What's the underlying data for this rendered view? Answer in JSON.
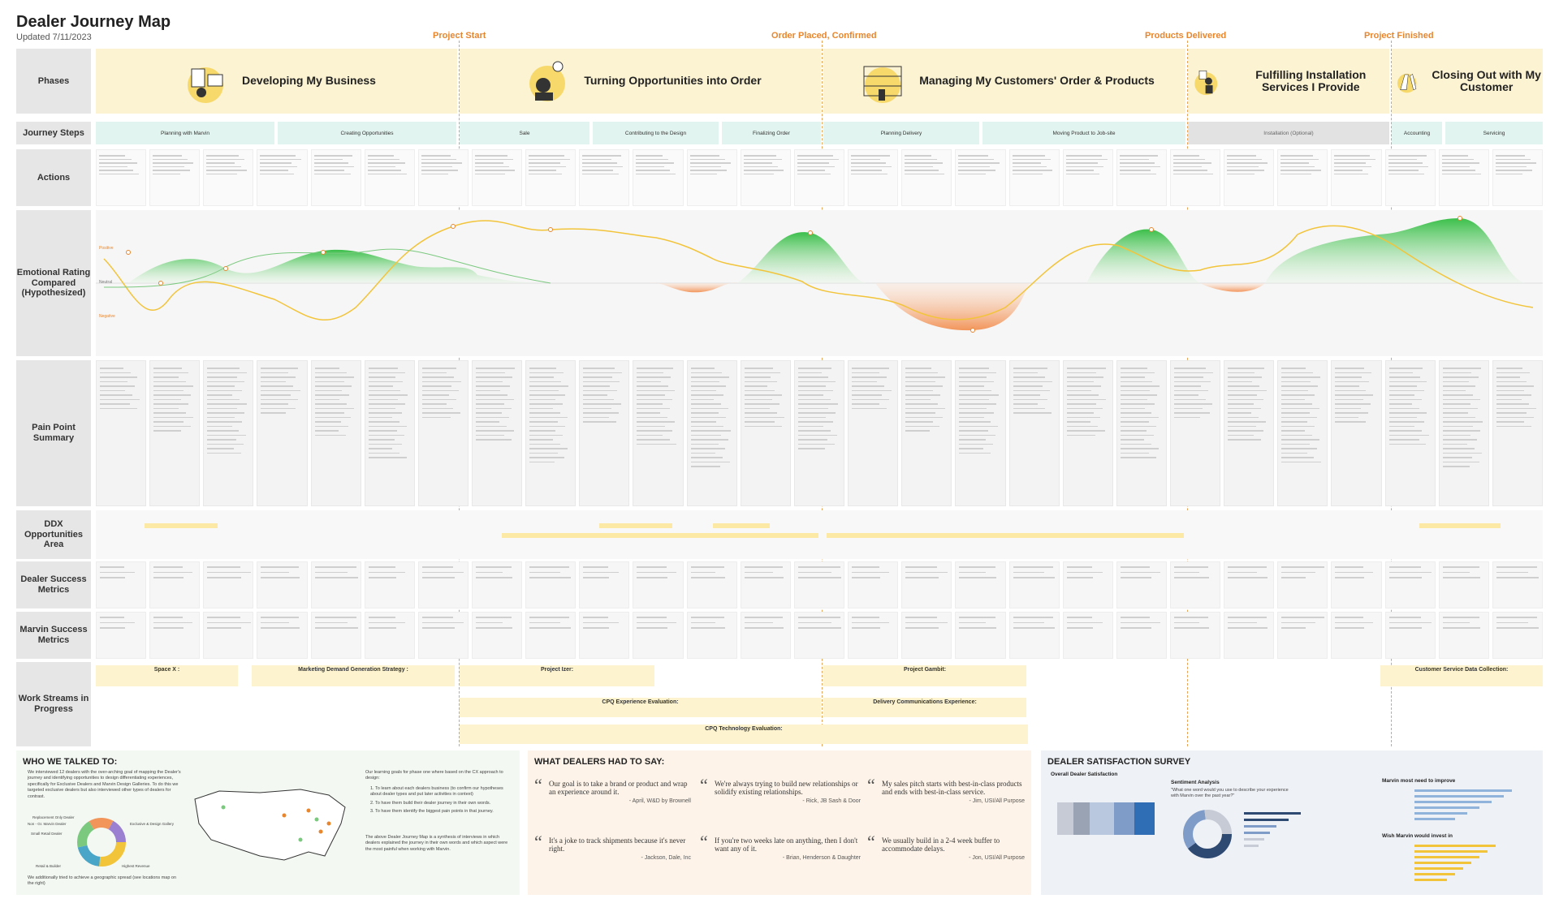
{
  "header": {
    "title": "Dealer Journey Map",
    "updated": "Updated 7/11/2023"
  },
  "milestones": [
    "Project Start",
    "Order Placed, Confirmed",
    "Products Delivered",
    "Project Finished"
  ],
  "row_labels": {
    "phases": "Phases",
    "journey_steps": "Journey Steps",
    "actions": "Actions",
    "emotional": "Emotional Rating Compared (Hypothesized)",
    "pain": "Pain Point Summary",
    "ddx": "DDX Opportunities Area",
    "dealer_metrics": "Dealer Success Metrics",
    "marvin_metrics": "Marvin Success Metrics",
    "workstreams": "Work Streams in Progress"
  },
  "phases": [
    {
      "title": "Developing My Business"
    },
    {
      "title": "Turning Opportunities into Order"
    },
    {
      "title": "Managing My Customers' Order & Products"
    },
    {
      "title": "Fulfilling Installation Services I Provide"
    },
    {
      "title": "Closing Out with My Customer"
    }
  ],
  "journey_steps": [
    {
      "label": "Planning with Marvin"
    },
    {
      "label": "Creating Opportunities"
    },
    {
      "label": "Sale"
    },
    {
      "label": "Contributing to the Design"
    },
    {
      "label": "Finalizing Order"
    },
    {
      "label": "Planning Delivery"
    },
    {
      "label": "Moving Product to Job-site"
    },
    {
      "label": "Installation (Optional)"
    },
    {
      "label": "Accounting"
    },
    {
      "label": "Servicing"
    }
  ],
  "emotion_labels": {
    "positive": "Positive",
    "neutral": "Neutral",
    "negative": "Negative"
  },
  "workstreams": [
    {
      "title": "Space X :"
    },
    {
      "title": "Marketing Demand Generation Strategy :"
    },
    {
      "title": "Project Izer:"
    },
    {
      "title": "Project Gambit:"
    },
    {
      "title": "Customer Service Data Collection:"
    },
    {
      "title": "CPQ Experience Evaluation:"
    },
    {
      "title": "Delivery Communications Experience:"
    },
    {
      "title": "CPQ Technology Evaluation:"
    }
  ],
  "bottom": {
    "who": {
      "heading": "WHO WE TALKED TO:",
      "intro": "We interviewed 12 dealers with the over-arching goal of mapping the Dealer's journey and identifying opportunities to design differentiating experiences, specifically for Exclusive Dealers and Marvin Design Galleries. To do this we targeted exclusive dealers but also interviewed other types of dealers for contrast.",
      "goals_intro": "Our learning goals for phase one where based on the CX approach to design:",
      "goals": [
        "1. To learn about each dealers business (to confirm our hypotheses about dealer types and put later activities in context)",
        "2. To have them build their dealer journey in their own words.",
        "3. To have them identify the biggest pain points in that journey."
      ],
      "synthesis": "The above Dealer Journey Map is a synthesis of interviews in which dealers explained the journey in their own words and which aspect were the most painful when working with Marvin.",
      "spread": "We additionally tried to achieve a geographic spread (see locations map on the right)",
      "donut_labels": [
        "Replacement Only Dealer",
        "Exclusive & Design Gallery",
        "Small Retail Dealer",
        "Non - Gr. Marvin Dealer",
        "Retail & Builder",
        "Highest Revenue"
      ]
    },
    "quotes": {
      "heading": "WHAT DEALERS HAD TO SAY:",
      "items": [
        {
          "text": "Our goal is to take a brand or product and wrap an experience around it.",
          "by": "- April, W&D by Brownell"
        },
        {
          "text": "We're always trying to build new relationships or solidify existing relationships.",
          "by": "- Rick, JB Sash & Door"
        },
        {
          "text": "My sales pitch starts with best-in-class products and ends with best-in-class service.",
          "by": "- Jim, USI/All Purpose"
        },
        {
          "text": "It's a joke to track shipments because it's never right.",
          "by": "- Jackson, Dale, Inc"
        },
        {
          "text": "If you're two weeks late on anything, then I don't want any of it.",
          "by": "- Brian, Henderson & Daughter"
        },
        {
          "text": "We usually build in a 2-4 week buffer to accommodate delays.",
          "by": "- Jon, USI/All Purpose"
        }
      ]
    },
    "survey": {
      "heading": "DEALER SATISFACTION SURVEY",
      "overall": "Overall Dealer Satisfaction",
      "sentiment": "Sentiment Analysis",
      "sentiment_q": "\"What one word would you use to describe your experience with Marvin over the past year?\"",
      "improve": "Marvin most need to improve",
      "invest": "Wish Marvin would invest in"
    }
  }
}
